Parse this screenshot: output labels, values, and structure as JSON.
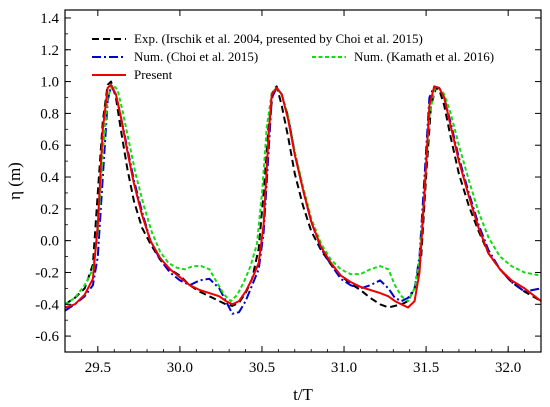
{
  "chart_data": {
    "type": "line",
    "xlabel": "t/T",
    "ylabel": "η (m)",
    "xlim": [
      29.3,
      32.2
    ],
    "ylim": [
      -0.7,
      1.45
    ],
    "x_ticks": [
      29.5,
      30.0,
      30.5,
      31.0,
      31.5,
      32.0
    ],
    "x_tick_labels": [
      "29.5",
      "30.0",
      "30.5",
      "31.0",
      "31.5",
      "32.0"
    ],
    "y_ticks": [
      -0.6,
      -0.4,
      -0.2,
      0.0,
      0.2,
      0.4,
      0.6,
      0.8,
      1.0,
      1.2,
      1.4
    ],
    "y_tick_labels": [
      "-0.6",
      "-0.4",
      "-0.2",
      "0.0",
      "0.2",
      "0.4",
      "0.6",
      "0.8",
      "1.0",
      "1.2",
      "1.4"
    ],
    "grid": false,
    "legend_position": "top",
    "series": [
      {
        "name": "Exp. (Irschik et al. 2004, presented by Choi et al. 2015)",
        "color": "#000000",
        "dash": "dashed",
        "x": [
          29.3,
          29.36,
          29.42,
          29.47,
          29.5,
          29.53,
          29.56,
          29.58,
          29.61,
          29.64,
          29.68,
          29.72,
          29.77,
          29.82,
          29.88,
          29.94,
          30.0,
          30.06,
          30.12,
          30.18,
          30.24,
          30.28,
          30.32,
          30.36,
          30.4,
          30.44,
          30.48,
          30.51,
          30.54,
          30.57,
          30.59,
          30.62,
          30.66,
          30.7,
          30.75,
          30.8,
          30.86,
          30.92,
          30.98,
          31.04,
          31.1,
          31.16,
          31.22,
          31.27,
          31.31,
          31.35,
          31.39,
          31.43,
          31.47,
          31.5,
          31.53,
          31.56,
          31.58,
          31.61,
          31.65,
          31.7,
          31.76,
          31.82,
          31.88,
          31.95,
          32.02,
          32.1,
          32.2
        ],
        "y": [
          -0.4,
          -0.36,
          -0.3,
          -0.15,
          0.3,
          0.75,
          0.98,
          1.0,
          0.9,
          0.7,
          0.45,
          0.25,
          0.08,
          -0.02,
          -0.12,
          -0.18,
          -0.22,
          -0.28,
          -0.32,
          -0.35,
          -0.38,
          -0.4,
          -0.41,
          -0.39,
          -0.33,
          -0.24,
          -0.05,
          0.3,
          0.72,
          0.95,
          0.97,
          0.85,
          0.65,
          0.42,
          0.22,
          0.06,
          -0.06,
          -0.15,
          -0.22,
          -0.27,
          -0.31,
          -0.36,
          -0.4,
          -0.42,
          -0.41,
          -0.4,
          -0.38,
          -0.3,
          -0.1,
          0.4,
          0.85,
          0.96,
          0.95,
          0.85,
          0.65,
          0.42,
          0.22,
          0.06,
          -0.08,
          -0.18,
          -0.26,
          -0.32,
          -0.38
        ]
      },
      {
        "name": "Num. (Choi et al. 2015)",
        "color": "#0000cc",
        "dash": "dashdot",
        "x": [
          29.3,
          29.36,
          29.42,
          29.47,
          29.5,
          29.53,
          29.56,
          29.58,
          29.61,
          29.64,
          29.68,
          29.72,
          29.77,
          29.82,
          29.88,
          29.94,
          30.0,
          30.06,
          30.12,
          30.18,
          30.24,
          30.28,
          30.32,
          30.36,
          30.4,
          30.44,
          30.48,
          30.51,
          30.54,
          30.56,
          30.59,
          30.62,
          30.66,
          30.7,
          30.75,
          30.8,
          30.86,
          30.92,
          30.98,
          31.04,
          31.1,
          31.16,
          31.22,
          31.27,
          31.31,
          31.35,
          31.39,
          31.43,
          31.46,
          31.49,
          31.52,
          31.55,
          31.58,
          31.61,
          31.65,
          31.7,
          31.76,
          31.82,
          31.88,
          31.95,
          32.02,
          32.1,
          32.2
        ],
        "y": [
          -0.44,
          -0.4,
          -0.35,
          -0.28,
          -0.1,
          0.4,
          0.88,
          0.97,
          0.92,
          0.78,
          0.58,
          0.38,
          0.18,
          0.0,
          -0.12,
          -0.2,
          -0.25,
          -0.28,
          -0.25,
          -0.24,
          -0.3,
          -0.38,
          -0.46,
          -0.45,
          -0.38,
          -0.28,
          -0.18,
          0.05,
          0.55,
          0.9,
          0.96,
          0.92,
          0.78,
          0.55,
          0.32,
          0.12,
          -0.05,
          -0.15,
          -0.24,
          -0.28,
          -0.3,
          -0.28,
          -0.25,
          -0.3,
          -0.36,
          -0.38,
          -0.36,
          -0.3,
          -0.1,
          0.4,
          0.9,
          0.97,
          0.96,
          0.9,
          0.74,
          0.52,
          0.3,
          0.1,
          -0.06,
          -0.18,
          -0.26,
          -0.32,
          -0.3
        ]
      },
      {
        "name": "Num. (Kamath et al. 2016)",
        "color": "#11dd11",
        "dash": "dotted",
        "x": [
          29.3,
          29.36,
          29.42,
          29.47,
          29.5,
          29.53,
          29.56,
          29.59,
          29.62,
          29.65,
          29.69,
          29.73,
          29.78,
          29.83,
          29.88,
          29.93,
          29.98,
          30.03,
          30.08,
          30.13,
          30.18,
          30.23,
          30.27,
          30.31,
          30.35,
          30.39,
          30.43,
          30.47,
          30.5,
          30.53,
          30.56,
          30.59,
          30.62,
          30.66,
          30.7,
          30.75,
          30.8,
          30.86,
          30.92,
          30.98,
          31.04,
          31.1,
          31.16,
          31.22,
          31.27,
          31.31,
          31.35,
          31.39,
          31.43,
          31.46,
          31.49,
          31.52,
          31.55,
          31.58,
          31.61,
          31.65,
          31.7,
          31.76,
          31.82,
          31.88,
          31.95,
          32.02,
          32.1,
          32.2
        ],
        "y": [
          -0.4,
          -0.36,
          -0.28,
          -0.18,
          0.05,
          0.55,
          0.9,
          0.98,
          0.95,
          0.82,
          0.62,
          0.42,
          0.22,
          0.05,
          -0.07,
          -0.14,
          -0.17,
          -0.18,
          -0.16,
          -0.16,
          -0.18,
          -0.27,
          -0.34,
          -0.38,
          -0.34,
          -0.26,
          -0.16,
          -0.02,
          0.3,
          0.72,
          0.93,
          0.96,
          0.92,
          0.78,
          0.56,
          0.34,
          0.14,
          -0.02,
          -0.12,
          -0.18,
          -0.21,
          -0.21,
          -0.18,
          -0.16,
          -0.18,
          -0.28,
          -0.35,
          -0.38,
          -0.3,
          -0.12,
          0.3,
          0.78,
          0.95,
          0.96,
          0.92,
          0.8,
          0.6,
          0.38,
          0.18,
          0.02,
          -0.1,
          -0.16,
          -0.2,
          -0.22
        ]
      },
      {
        "name": "Present",
        "color": "#ee0000",
        "dash": "solid",
        "x": [
          29.3,
          29.36,
          29.42,
          29.47,
          29.5,
          29.53,
          29.56,
          29.58,
          29.61,
          29.64,
          29.68,
          29.72,
          29.77,
          29.82,
          29.88,
          29.94,
          30.0,
          30.06,
          30.12,
          30.18,
          30.24,
          30.28,
          30.32,
          30.36,
          30.4,
          30.44,
          30.48,
          30.51,
          30.54,
          30.56,
          30.59,
          30.62,
          30.66,
          30.7,
          30.75,
          30.8,
          30.86,
          30.92,
          30.98,
          31.04,
          31.1,
          31.16,
          31.22,
          31.27,
          31.31,
          31.35,
          31.39,
          31.43,
          31.46,
          31.49,
          31.52,
          31.55,
          31.58,
          31.61,
          31.65,
          31.7,
          31.76,
          31.82,
          31.88,
          31.95,
          32.02,
          32.1,
          32.2
        ],
        "y": [
          -0.42,
          -0.4,
          -0.34,
          -0.24,
          0.1,
          0.7,
          0.96,
          0.98,
          0.92,
          0.78,
          0.56,
          0.36,
          0.16,
          0.0,
          -0.11,
          -0.18,
          -0.23,
          -0.28,
          -0.31,
          -0.33,
          -0.35,
          -0.38,
          -0.4,
          -0.38,
          -0.32,
          -0.24,
          -0.14,
          0.1,
          0.65,
          0.92,
          0.96,
          0.92,
          0.76,
          0.54,
          0.32,
          0.12,
          -0.04,
          -0.14,
          -0.22,
          -0.26,
          -0.29,
          -0.31,
          -0.33,
          -0.35,
          -0.38,
          -0.4,
          -0.42,
          -0.38,
          -0.2,
          0.3,
          0.85,
          0.97,
          0.96,
          0.9,
          0.72,
          0.5,
          0.28,
          0.08,
          -0.08,
          -0.18,
          -0.25,
          -0.3,
          -0.38
        ]
      }
    ]
  }
}
